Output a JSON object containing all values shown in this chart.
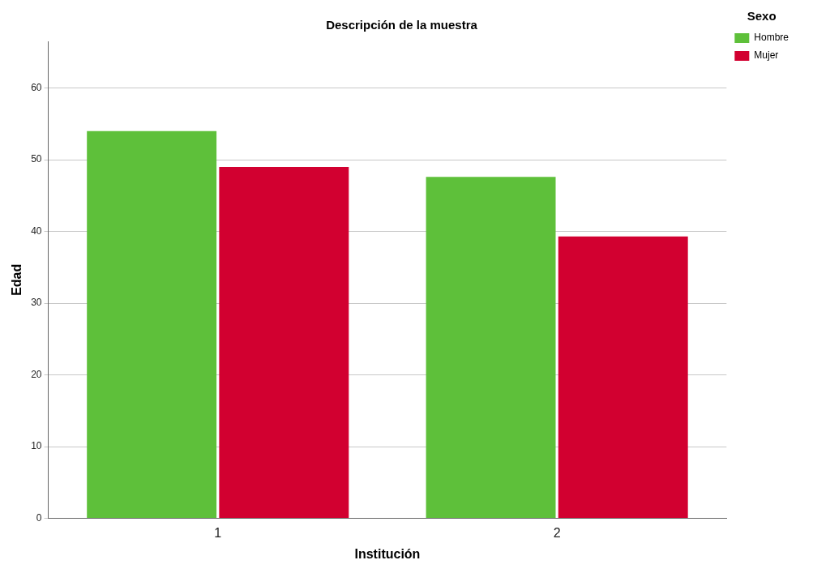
{
  "chart_data": {
    "type": "bar",
    "title": "Descripción de la muestra",
    "xlabel": "Institución",
    "ylabel": "Edad",
    "legend_title": "Sexo",
    "categories": [
      "1",
      "2"
    ],
    "series": [
      {
        "name": "Hombre",
        "color": "#5ec03a",
        "values": [
          54.0,
          47.6
        ]
      },
      {
        "name": "Mujer",
        "color": "#d20030",
        "values": [
          49.0,
          39.3
        ]
      }
    ],
    "ylim": [
      0,
      66.5
    ],
    "yticks": [
      0,
      10,
      20,
      30,
      40,
      50,
      60
    ],
    "grid": "y",
    "legend": "top right"
  }
}
